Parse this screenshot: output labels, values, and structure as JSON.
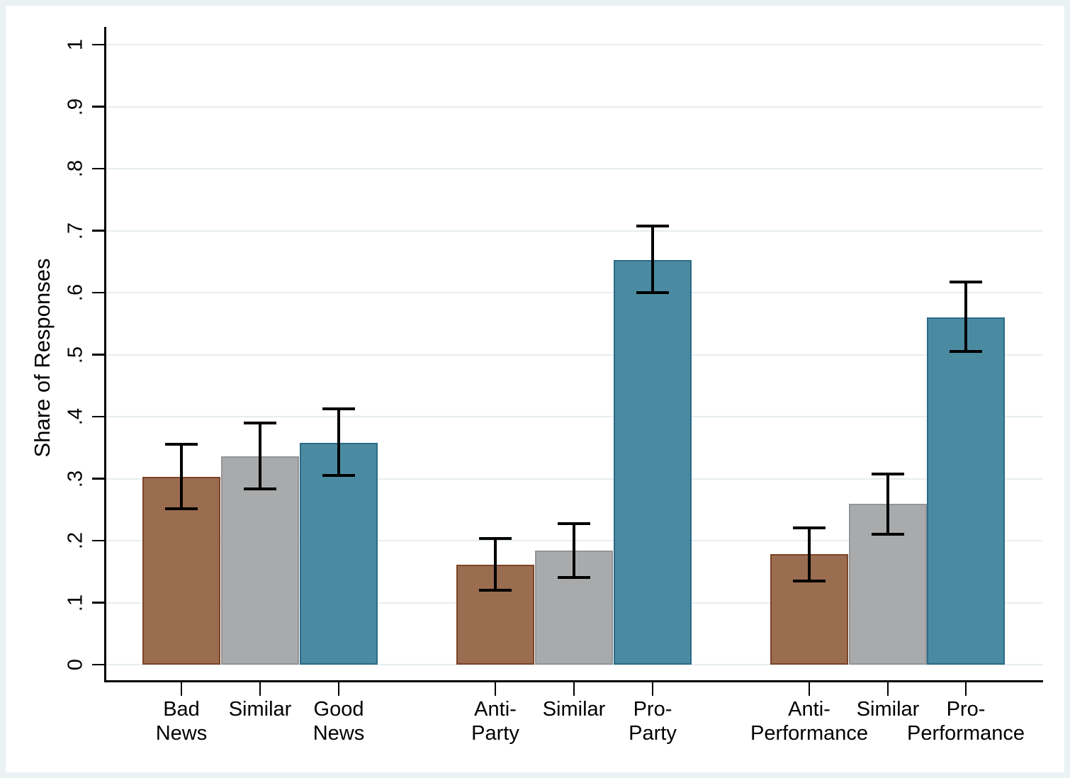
{
  "figure": {
    "outer_background": "#eaf2f3",
    "plot_background": "#ffffff",
    "gridline_color": "#e7eef1",
    "axis_color": "#000000",
    "text_color": "#000000"
  },
  "chart_data": {
    "type": "bar",
    "title": "",
    "xlabel": "",
    "ylabel": "Share of Responses",
    "ylim": [
      0,
      1.03
    ],
    "grid": true,
    "legend": "none",
    "ytick_values": [
      0,
      0.1,
      0.2,
      0.3,
      0.4,
      0.5,
      0.6,
      0.7,
      0.8,
      0.9,
      1
    ],
    "ytick_labels": [
      "0",
      ".1",
      ".2",
      ".3",
      ".4",
      ".5",
      ".6",
      ".7",
      ".8",
      ".9",
      "1"
    ],
    "ytick_label_angle_deg": 90,
    "error_bar_color": "#000000",
    "series_colors": [
      {
        "name": "anti",
        "fill": "#9a6c50",
        "border": "#7c4527"
      },
      {
        "name": "similar",
        "fill": "#a9aaab",
        "border": "#939597"
      },
      {
        "name": "pro",
        "fill": "#4b8ba1",
        "border": "#2c6b87"
      }
    ],
    "groups": [
      {
        "name": "news",
        "bars": [
          {
            "label": "Bad News",
            "label_lines": [
              "Bad",
              "News"
            ],
            "series": "anti",
            "value": 0.303,
            "ci_low": 0.252,
            "ci_high": 0.355
          },
          {
            "label": "Similar",
            "label_lines": [
              "Similar"
            ],
            "series": "similar",
            "value": 0.336,
            "ci_low": 0.283,
            "ci_high": 0.39
          },
          {
            "label": "Good News",
            "label_lines": [
              "Good",
              "News"
            ],
            "series": "pro",
            "value": 0.358,
            "ci_low": 0.305,
            "ci_high": 0.413
          }
        ]
      },
      {
        "name": "party",
        "bars": [
          {
            "label": "Anti-Party",
            "label_lines": [
              "Anti-",
              "Party"
            ],
            "series": "anti",
            "value": 0.161,
            "ci_low": 0.12,
            "ci_high": 0.203
          },
          {
            "label": "Similar",
            "label_lines": [
              "Similar"
            ],
            "series": "similar",
            "value": 0.184,
            "ci_low": 0.141,
            "ci_high": 0.227
          },
          {
            "label": "Pro-Party",
            "label_lines": [
              "Pro-",
              "Party"
            ],
            "series": "pro",
            "value": 0.653,
            "ci_low": 0.6,
            "ci_high": 0.707
          }
        ]
      },
      {
        "name": "performance",
        "bars": [
          {
            "label": "Anti-Performance",
            "label_lines": [
              "Anti-",
              "Performance"
            ],
            "series": "anti",
            "value": 0.178,
            "ci_low": 0.135,
            "ci_high": 0.221
          },
          {
            "label": "Similar",
            "label_lines": [
              "Similar"
            ],
            "series": "similar",
            "value": 0.26,
            "ci_low": 0.21,
            "ci_high": 0.308
          },
          {
            "label": "Pro-Performance",
            "label_lines": [
              "Pro-",
              "Performance"
            ],
            "series": "pro",
            "value": 0.56,
            "ci_low": 0.505,
            "ci_high": 0.617
          }
        ]
      }
    ]
  }
}
